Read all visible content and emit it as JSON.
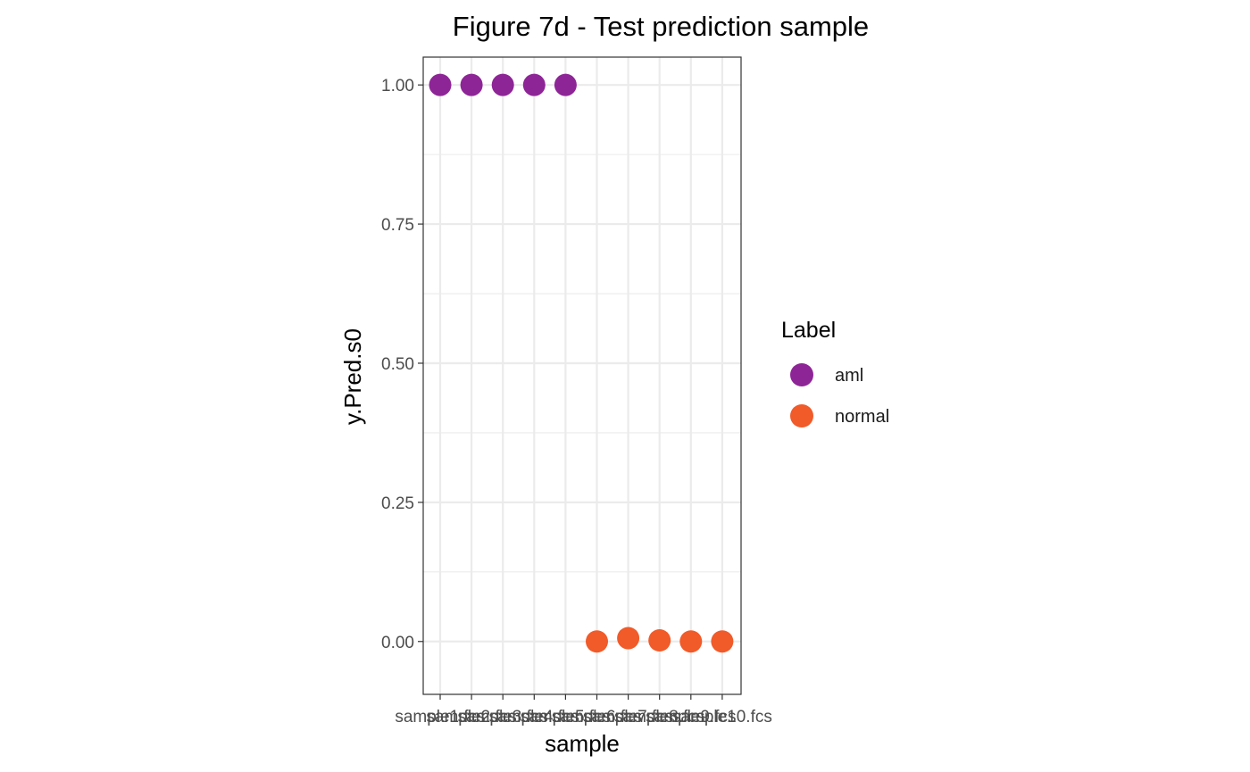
{
  "chart_data": {
    "type": "scatter",
    "title": "Figure 7d - Test prediction sample",
    "xlabel": "sample",
    "ylabel": "y.Pred.s0",
    "categories": [
      "sample1.fcs",
      "sample2.fcs",
      "sample3.fcs",
      "sample4.fcs",
      "sample5.fcs",
      "sample6.fcs",
      "sample7.fcs",
      "sample8.fcs",
      "sample9.fcs",
      "sample10.fcs"
    ],
    "ylim": [
      -0.095,
      1.05
    ],
    "yticks": [
      0.0,
      0.25,
      0.5,
      0.75,
      1.0
    ],
    "ytick_labels": [
      "0.00",
      "0.25",
      "0.50",
      "0.75",
      "1.00"
    ],
    "grid": true,
    "series": [
      {
        "name": "aml",
        "color": "#8E2597",
        "x": [
          "sample1.fcs",
          "sample2.fcs",
          "sample3.fcs",
          "sample4.fcs",
          "sample5.fcs"
        ],
        "values": [
          1.0,
          1.0,
          1.0,
          1.0,
          1.0
        ]
      },
      {
        "name": "normal",
        "color": "#F15A29",
        "x": [
          "sample6.fcs",
          "sample7.fcs",
          "sample8.fcs",
          "sample9.fcs",
          "sample10.fcs"
        ],
        "values": [
          0.0,
          0.006,
          0.002,
          0.0,
          0.0
        ]
      }
    ],
    "legend": {
      "title": "Label",
      "position": "right"
    }
  }
}
